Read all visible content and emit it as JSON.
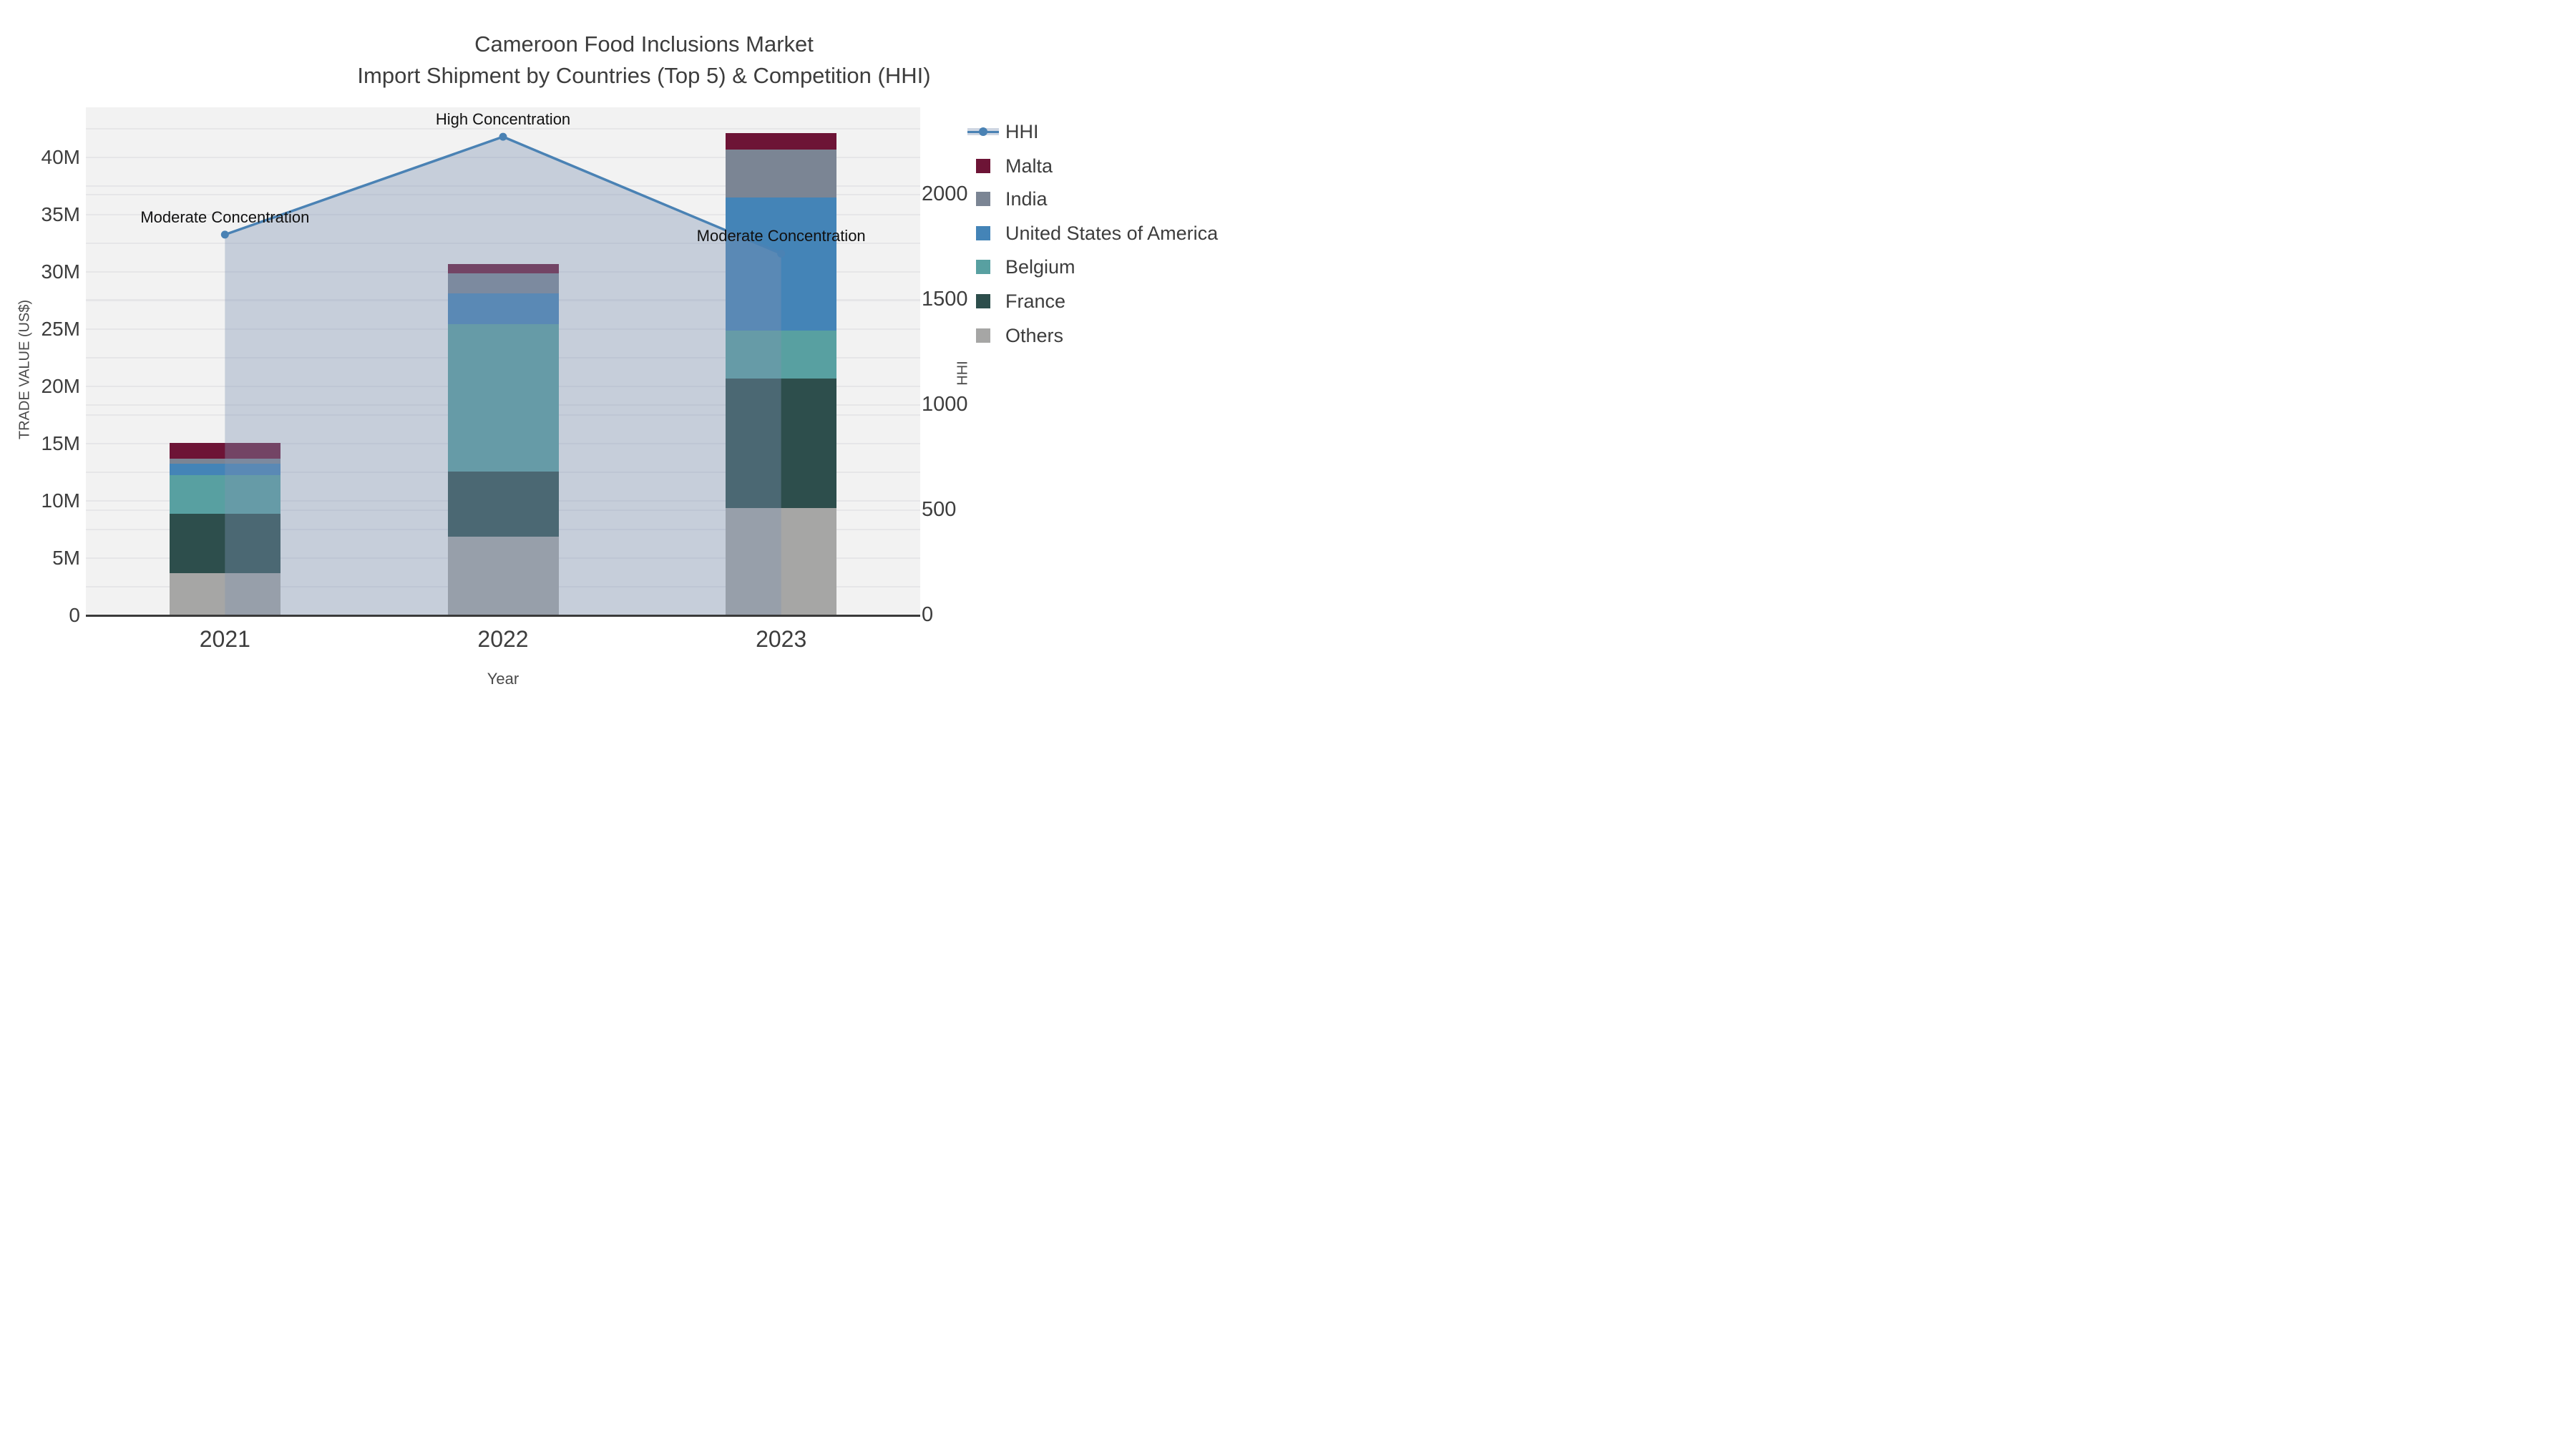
{
  "title": {
    "line1": "Cameroon Food Inclusions Market",
    "line2": "Import Shipment by Countries (Top 5) & Competition (HHI)"
  },
  "chart_data": {
    "type": "stacked-bar+line",
    "categories": [
      "2021",
      "2022",
      "2023"
    ],
    "values_unit": "USD millions (left axis), HHI index (right axis)",
    "series": [
      {
        "name": "Others",
        "color": "#a6a6a5",
        "values": [
          3.7,
          6.85,
          9.4
        ]
      },
      {
        "name": "France",
        "color": "#2d4e4c",
        "values": [
          5.15,
          5.7,
          11.3
        ]
      },
      {
        "name": "Belgium",
        "color": "#58a0a1",
        "values": [
          3.4,
          12.9,
          4.2
        ]
      },
      {
        "name": "United States of America",
        "color": "#4484b7",
        "values": [
          1.0,
          2.7,
          11.6
        ]
      },
      {
        "name": "India",
        "color": "#7b8594",
        "values": [
          0.45,
          1.75,
          4.2
        ]
      },
      {
        "name": "Malta",
        "color": "#6d1436",
        "values": [
          1.35,
          0.8,
          1.45
        ]
      }
    ],
    "bar_totals": [
      15.05,
      30.7,
      42.15
    ],
    "line_series": {
      "name": "HHI",
      "color": "#4a82b4",
      "fill": "rgba(126,146,179,0.38)",
      "values": [
        1810,
        2275,
        1720
      ]
    },
    "annotations": [
      {
        "category": "2021",
        "text": "Moderate Concentration"
      },
      {
        "category": "2022",
        "text": "High Concentration"
      },
      {
        "category": "2023",
        "text": "Moderate Concentration"
      }
    ],
    "xlabel": "Year",
    "ylabel_left": "TRADE VALUE (US$)",
    "ylabel_right": "HHI",
    "left_axis": {
      "tick_labels": [
        "0",
        "5M",
        "10M",
        "15M",
        "20M",
        "25M",
        "30M",
        "35M",
        "40M"
      ],
      "tick_values_M": [
        0,
        5,
        10,
        15,
        20,
        25,
        30,
        35,
        40
      ],
      "ylim_M": [
        0,
        44.4
      ],
      "grid_step_M": 2.5
    },
    "right_axis": {
      "tick_labels": [
        "0",
        "500",
        "1000",
        "1500",
        "2000"
      ],
      "tick_values": [
        0,
        500,
        1000,
        1500,
        2000
      ],
      "ylim": [
        0,
        2415
      ],
      "grid_step": 500
    },
    "legend_order": [
      "HHI",
      "Malta",
      "India",
      "United States of America",
      "Belgium",
      "France",
      "Others"
    ],
    "style": {
      "plot_bg": "#f2f2f2",
      "grid_color": "#e6e6e8",
      "spine_color": "#3a3a3a",
      "text_color": "#3d3d3d"
    }
  }
}
